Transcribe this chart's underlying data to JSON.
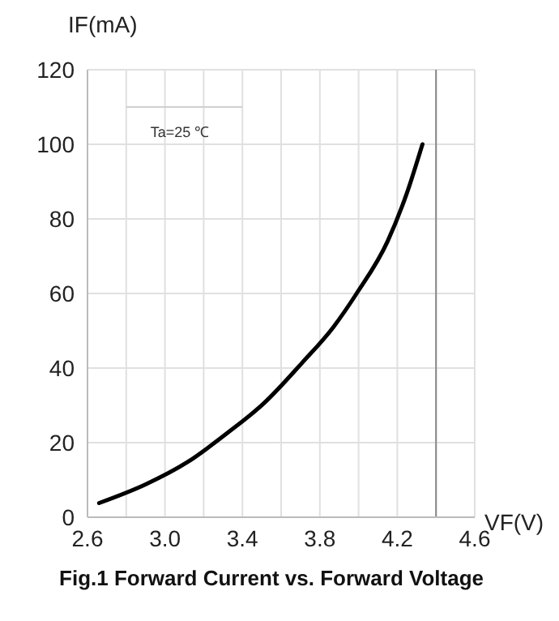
{
  "chart_data": {
    "type": "line",
    "title": "Fig.1 Forward Current vs. Forward Voltage",
    "xlabel": "VF(V)",
    "ylabel": "IF(mA)",
    "annotations": [
      "Ta=25 ℃"
    ],
    "series": [
      {
        "color": "#000000",
        "x": [
          2.66,
          2.9,
          3.12,
          3.32,
          3.51,
          3.71,
          3.87,
          3.99,
          4.15,
          4.25,
          4.33
        ],
        "values": [
          3.8,
          8.8,
          14.9,
          22.5,
          30.5,
          41.5,
          51,
          60,
          74,
          87,
          100
        ]
      }
    ],
    "xlim": [
      2.6,
      4.6
    ],
    "xticks": [
      2.6,
      {
        "value": 2.8,
        "label": null
      },
      "3.0",
      {
        "value": 3.2,
        "label": null
      },
      3.4,
      {
        "value": 3.6,
        "label": null
      },
      3.8,
      {
        "value": 4.0,
        "label": null
      },
      4.2,
      {
        "value": 4.4,
        "label": null
      },
      4.6
    ],
    "ylim": [
      0,
      120
    ],
    "yticks": [
      0,
      20,
      40,
      60,
      80,
      100,
      120
    ],
    "ref_lines": [
      {
        "axis": "x",
        "value": 4.4,
        "color": "#888888"
      }
    ],
    "grid": true,
    "line_style": "solid",
    "marker": "none"
  }
}
